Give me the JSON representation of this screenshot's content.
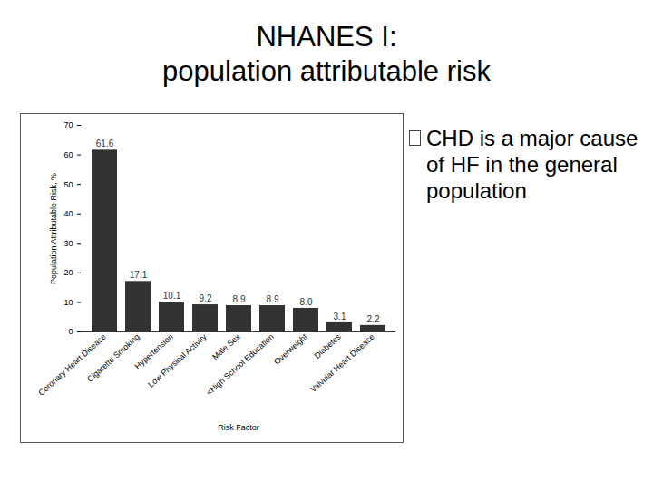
{
  "chart_data": {
    "type": "bar",
    "title": "NHANES I:\npopulation attributable risk",
    "note": "CHD is a major cause of HF in the general population",
    "categories": [
      "Coronary Heart Disease",
      "Cigarette Smoking",
      "Hypertension",
      "Low Physical Activity",
      "Male Sex",
      "<High School Education",
      "Overweight",
      "Diabetes",
      "Valvular Heart Disease"
    ],
    "values": [
      61.6,
      17.1,
      10.1,
      9.2,
      8.9,
      8.9,
      8.0,
      3.1,
      2.2
    ],
    "value_labels": [
      "61.6",
      "17.1",
      "10.1",
      "9.2",
      "8.9",
      "8.9",
      "8.0",
      "3.1",
      "2.2"
    ],
    "data_labels": true,
    "color": "#333333",
    "xlabel": "Risk Factor",
    "ylabel": "Population Attributable Risk, %",
    "ylim": [
      0,
      70
    ],
    "yticks": [
      0,
      10,
      20,
      30,
      40,
      50,
      60,
      70
    ],
    "grid": false
  }
}
